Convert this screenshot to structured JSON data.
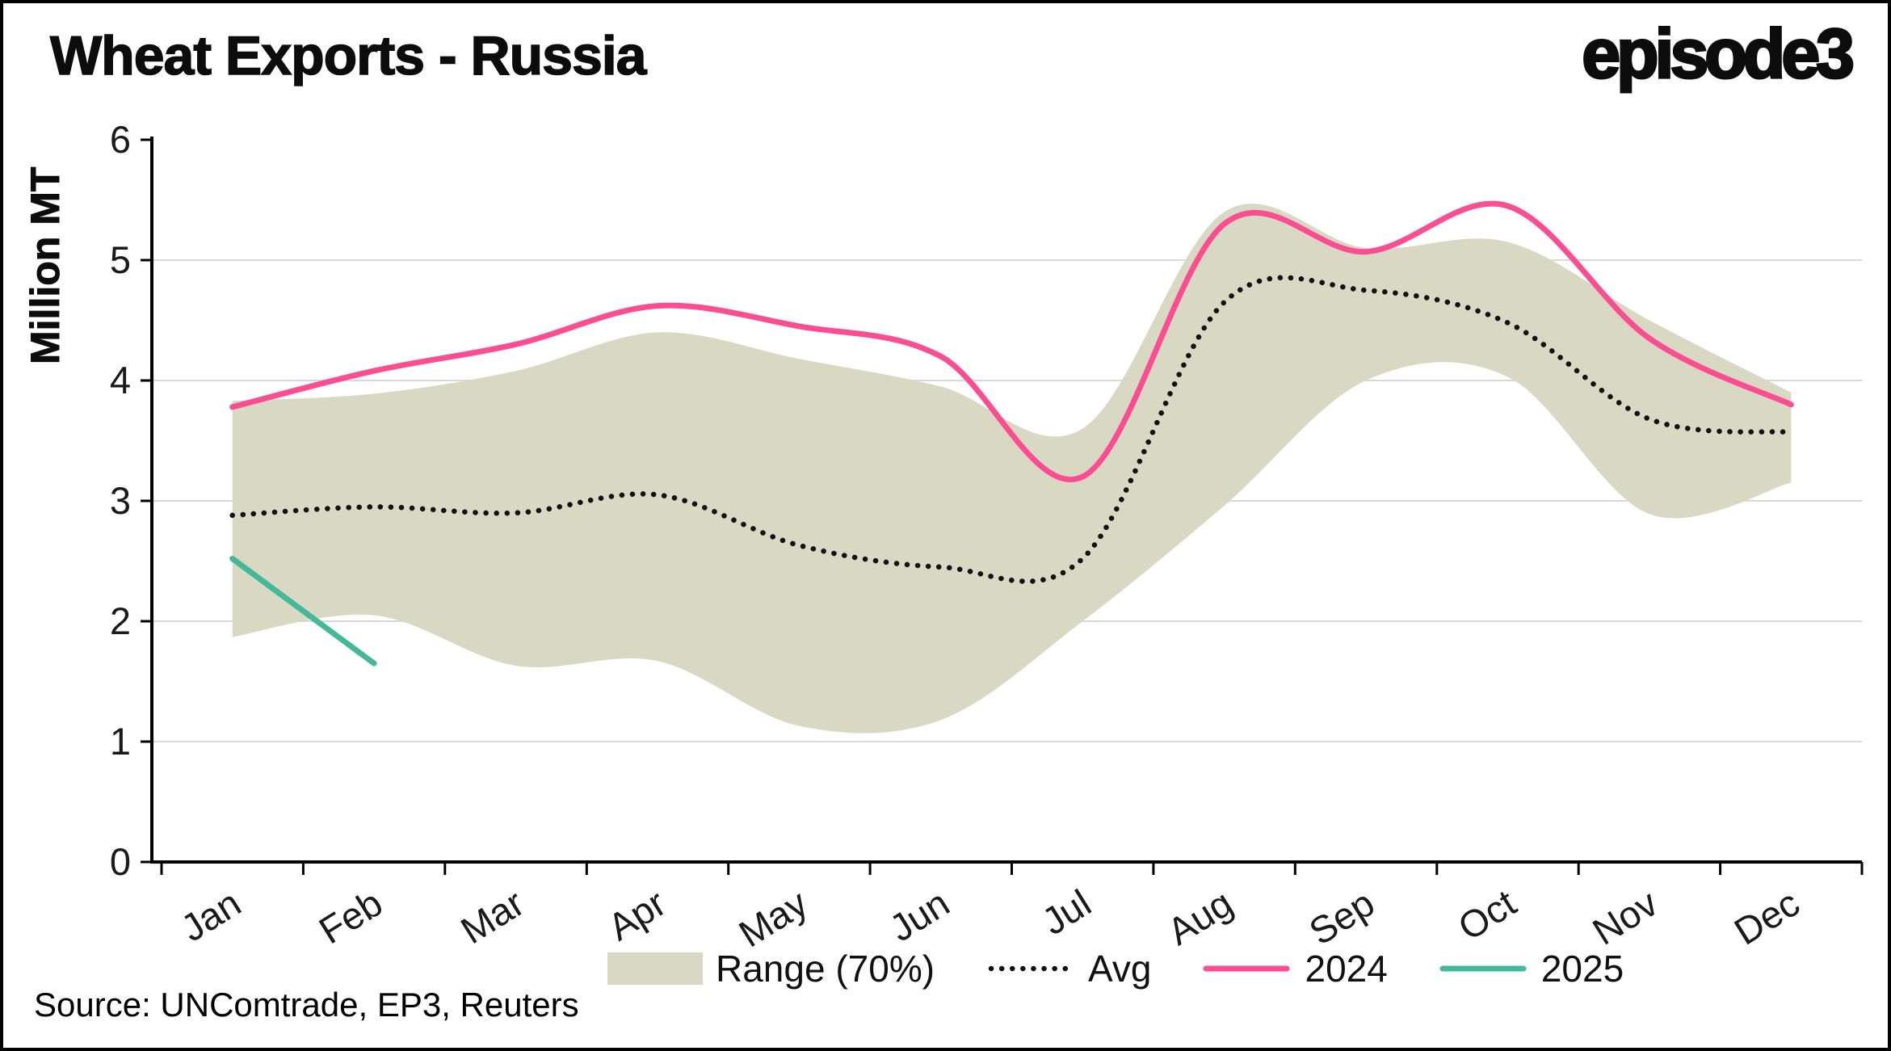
{
  "header": {
    "title": "Wheat Exports - Russia",
    "logo": "episode3"
  },
  "source": "Source: UNComtrade, EP3, Reuters",
  "chart_data": {
    "type": "line",
    "title": "Wheat Exports - Russia",
    "unit": "Million MT",
    "ylabel": "Million MT",
    "xlabel": "",
    "ylim": [
      0,
      6
    ],
    "yticks": [
      0,
      1,
      2,
      3,
      4,
      5,
      6
    ],
    "grid": "horizontal",
    "legend_position": "bottom",
    "categories": [
      "Jan",
      "Feb",
      "Mar",
      "Apr",
      "May",
      "Jun",
      "Jul",
      "Aug",
      "Sep",
      "Oct",
      "Nov",
      "Dec"
    ],
    "band": {
      "name": "Range (70%)",
      "color": "#d9d9c3",
      "upper": [
        3.83,
        3.89,
        4.08,
        4.4,
        4.18,
        3.95,
        3.6,
        5.4,
        5.1,
        5.15,
        4.5,
        3.9
      ],
      "lower": [
        1.87,
        2.05,
        1.63,
        1.67,
        1.13,
        1.18,
        2.0,
        2.96,
        4.0,
        4.03,
        2.89,
        3.15
      ]
    },
    "series": [
      {
        "name": "Avg",
        "style": "dotted",
        "color": "#111111",
        "values": [
          2.88,
          2.95,
          2.9,
          3.05,
          2.63,
          2.45,
          2.52,
          4.65,
          4.75,
          4.48,
          3.68,
          3.57
        ]
      },
      {
        "name": "2024",
        "style": "solid",
        "color": "#fb4d92",
        "values": [
          3.78,
          4.08,
          4.3,
          4.62,
          4.45,
          4.2,
          3.2,
          5.3,
          5.07,
          5.45,
          4.35,
          3.8
        ]
      },
      {
        "name": "2025",
        "style": "solid",
        "color": "#45b89a",
        "values": [
          2.52,
          1.65,
          null,
          null,
          null,
          null,
          null,
          null,
          null,
          null,
          null,
          null
        ]
      }
    ],
    "colors": {
      "grid": "#d8d8d8",
      "axis": "#000000",
      "band": "#d9d9c3",
      "series_2024": "#fb4d92",
      "series_2025": "#45b89a",
      "avg": "#111111"
    }
  }
}
